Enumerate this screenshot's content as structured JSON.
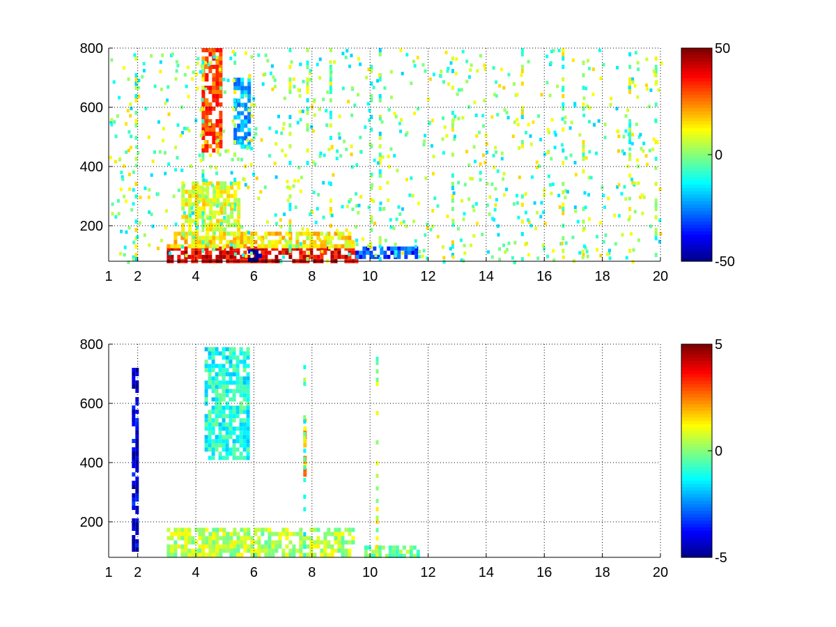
{
  "chart_data": [
    {
      "type": "heatmap",
      "x_range": [
        1,
        20
      ],
      "y_range": [
        80,
        800
      ],
      "x_ticks": [
        1,
        2,
        4,
        6,
        8,
        10,
        12,
        14,
        16,
        18,
        20
      ],
      "y_ticks": [
        200,
        400,
        600,
        800
      ],
      "grid": true,
      "colormap": "jet",
      "colorbar": {
        "min": -50,
        "max": 50,
        "ticks": [
          50,
          0,
          -50
        ]
      },
      "regions": [
        {
          "x": [
            3.0,
            9.5
          ],
          "y": [
            85,
            130
          ],
          "value": 40
        },
        {
          "x": [
            5.8,
            6.2
          ],
          "y": [
            90,
            120
          ],
          "value": -45
        },
        {
          "x": [
            9.5,
            11.6
          ],
          "y": [
            90,
            130
          ],
          "value": -30
        },
        {
          "x": [
            4.2,
            4.9
          ],
          "y": [
            460,
            800
          ],
          "value": 30
        },
        {
          "x": [
            5.3,
            5.8
          ],
          "y": [
            460,
            700
          ],
          "value": -20
        },
        {
          "x": [
            3.0,
            9.4
          ],
          "y": [
            130,
            180
          ],
          "value": 15
        },
        {
          "x": [
            3.5,
            5.5
          ],
          "y": [
            180,
            350
          ],
          "value": 10
        }
      ],
      "vertical_streaks": [
        1.9,
        4.2,
        5.3,
        7.2,
        7.8,
        8.6,
        10.0,
        10.3,
        12.8,
        15.2,
        16.6,
        17.3,
        18.9,
        19.8
      ]
    },
    {
      "type": "heatmap",
      "x_range": [
        1,
        20
      ],
      "y_range": [
        80,
        800
      ],
      "x_ticks": [
        1,
        2,
        4,
        6,
        8,
        10,
        12,
        14,
        16,
        18,
        20
      ],
      "y_ticks": [
        200,
        400,
        600,
        800
      ],
      "grid": true,
      "colormap": "jet",
      "colorbar": {
        "min": -5,
        "max": 5,
        "ticks": [
          5,
          0,
          -5
        ]
      },
      "regions": [
        {
          "x": [
            3.0,
            9.4
          ],
          "y": [
            85,
            180
          ],
          "value": 0.5
        },
        {
          "x": [
            4.3,
            5.8
          ],
          "y": [
            420,
            790
          ],
          "value": -1
        },
        {
          "x": [
            9.8,
            11.6
          ],
          "y": [
            90,
            120
          ],
          "value": 0
        },
        {
          "x": [
            7.7,
            7.8
          ],
          "y": [
            360,
            550
          ],
          "value": 2
        },
        {
          "x": [
            1.8,
            1.95
          ],
          "y": [
            100,
            720
          ],
          "value": -4
        }
      ],
      "vertical_streaks": [
        7.7,
        10.2
      ]
    }
  ]
}
